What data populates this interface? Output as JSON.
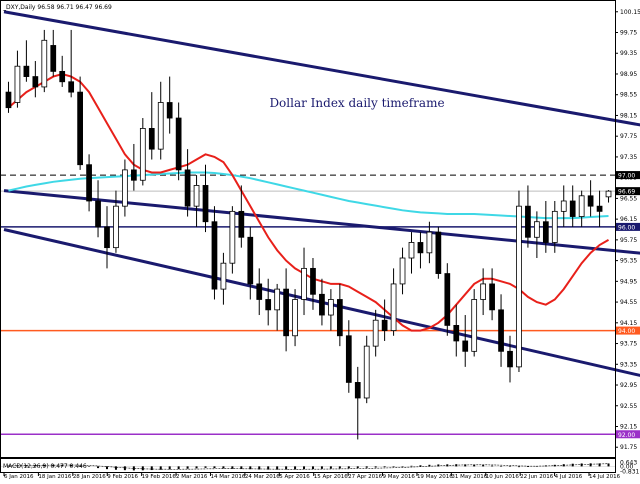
{
  "header": {
    "symbol_line": "_DXY,Daily  96.58 96.71 96.47 96.69"
  },
  "chart_data": [
    {
      "type": "candlestick",
      "title": "Dollar Index daily timeframe",
      "y_ticks": [
        "100.15",
        "99.75",
        "99.35",
        "98.95",
        "98.55",
        "98.15",
        "97.75",
        "97.35",
        "96.95",
        "96.55",
        "96.15",
        "95.75",
        "95.35",
        "94.95",
        "94.55",
        "94.15",
        "93.75",
        "93.35",
        "92.95",
        "92.55",
        "92.15",
        "91.75"
      ],
      "ylim": [
        91.6,
        100.3
      ],
      "x_ticks": [
        "6 Jan 2016",
        "18 Jan 2016",
        "28 Jan 2016",
        "9 Feb 2016",
        "19 Feb 2016",
        "2 Mar 2016",
        "14 Mar 2016",
        "24 Mar 2016",
        "5 Apr 2016",
        "15 Apr 2016",
        "27 Apr 2016",
        "9 May 2016",
        "19 May 2016",
        "31 May 2016",
        "10 Jun 2016",
        "22 Jun 2016",
        "4 Jul 2016",
        "14 Jul 2016"
      ],
      "price_markers": [
        {
          "label": "97.00",
          "value": 97.0,
          "color": "#000000",
          "style": "dashed"
        },
        {
          "label": "96.69",
          "value": 96.69,
          "color": "#000000",
          "style": "current"
        },
        {
          "label": "96.00",
          "value": 96.0,
          "color": "#1a1a6e",
          "style": "solid"
        },
        {
          "label": "94.00",
          "value": 94.0,
          "color": "#ff5a1f",
          "style": "solid"
        },
        {
          "label": "92.00",
          "value": 92.0,
          "color": "#9b30c8",
          "style": "solid"
        }
      ],
      "trend_channel": [
        {
          "from": [
            0,
            100.15
          ],
          "to": [
            102,
            97.0
          ]
        },
        {
          "from": [
            0,
            96.7
          ],
          "to": [
            135,
            94.4
          ]
        },
        {
          "from": [
            0,
            95.95
          ],
          "to": [
            108,
            91.65
          ]
        }
      ],
      "ma_fast": {
        "color": "#e8201a",
        "values": [
          98.3,
          98.45,
          98.6,
          98.7,
          98.8,
          98.9,
          98.95,
          98.9,
          98.8,
          98.6,
          98.3,
          98.0,
          97.7,
          97.4,
          97.2,
          97.1,
          97.05,
          97.05,
          97.1,
          97.15,
          97.2,
          97.3,
          97.4,
          97.35,
          97.25,
          97.0,
          96.7,
          96.4,
          96.1,
          95.8,
          95.55,
          95.35,
          95.2,
          95.1,
          95.0,
          94.95,
          94.9,
          94.9,
          94.85,
          94.75,
          94.65,
          94.55,
          94.4,
          94.25,
          94.1,
          94.0,
          94.0,
          94.05,
          94.15,
          94.3,
          94.5,
          94.7,
          94.9,
          95.0,
          95.0,
          94.95,
          94.9,
          94.8,
          94.65,
          94.55,
          94.5,
          94.6,
          94.8,
          95.05,
          95.3,
          95.5,
          95.65,
          95.75
        ]
      },
      "ma_slow": {
        "color": "#3fd8e6",
        "values": [
          96.7,
          96.74,
          96.78,
          96.81,
          96.84,
          96.87,
          96.89,
          96.91,
          96.93,
          96.94,
          96.95,
          96.96,
          96.97,
          96.98,
          96.99,
          97.0,
          97.01,
          97.02,
          97.03,
          97.04,
          97.05,
          97.05,
          97.05,
          97.04,
          97.02,
          97.0,
          96.97,
          96.94,
          96.9,
          96.86,
          96.82,
          96.78,
          96.74,
          96.7,
          96.66,
          96.62,
          96.58,
          96.54,
          96.5,
          96.47,
          96.44,
          96.41,
          96.38,
          96.35,
          96.32,
          96.3,
          96.28,
          96.27,
          96.26,
          96.25,
          96.25,
          96.25,
          96.25,
          96.24,
          96.23,
          96.22,
          96.21,
          96.2,
          96.19,
          96.18,
          96.17,
          96.17,
          96.17,
          96.17,
          96.18,
          96.19,
          96.2,
          96.21
        ]
      },
      "ohlc": [
        [
          98.6,
          98.8,
          98.2,
          98.3
        ],
        [
          98.4,
          99.4,
          98.3,
          99.1
        ],
        [
          99.1,
          99.6,
          98.8,
          98.9
        ],
        [
          98.9,
          99.2,
          98.5,
          98.7
        ],
        [
          98.7,
          99.8,
          98.6,
          99.6
        ],
        [
          99.5,
          99.8,
          98.9,
          99.0
        ],
        [
          99.0,
          99.3,
          98.7,
          98.8
        ],
        [
          98.8,
          99.8,
          98.5,
          98.6
        ],
        [
          98.6,
          98.9,
          97.1,
          97.2
        ],
        [
          97.2,
          97.4,
          96.3,
          96.5
        ],
        [
          96.5,
          96.9,
          95.8,
          96.0
        ],
        [
          96.0,
          96.4,
          95.2,
          95.6
        ],
        [
          95.6,
          96.7,
          95.5,
          96.4
        ],
        [
          96.4,
          97.3,
          96.2,
          97.1
        ],
        [
          97.1,
          97.6,
          96.7,
          96.9
        ],
        [
          96.9,
          98.1,
          96.8,
          97.9
        ],
        [
          97.9,
          98.6,
          97.3,
          97.5
        ],
        [
          97.5,
          98.8,
          97.3,
          98.4
        ],
        [
          98.4,
          98.9,
          97.8,
          98.1
        ],
        [
          98.1,
          98.4,
          96.9,
          97.1
        ],
        [
          97.1,
          97.5,
          96.2,
          96.4
        ],
        [
          96.4,
          97.0,
          96.0,
          96.8
        ],
        [
          96.8,
          97.2,
          95.9,
          96.1
        ],
        [
          96.1,
          96.4,
          94.6,
          94.8
        ],
        [
          94.8,
          95.5,
          94.5,
          95.3
        ],
        [
          95.3,
          96.4,
          95.1,
          96.3
        ],
        [
          96.3,
          96.8,
          95.6,
          95.8
        ],
        [
          95.8,
          96.0,
          94.6,
          94.9
        ],
        [
          94.9,
          95.2,
          94.3,
          94.6
        ],
        [
          94.6,
          95.0,
          94.1,
          94.4
        ],
        [
          94.4,
          94.9,
          94.0,
          94.8
        ],
        [
          94.8,
          95.2,
          93.6,
          93.9
        ],
        [
          93.9,
          94.8,
          93.7,
          94.6
        ],
        [
          94.6,
          95.6,
          94.3,
          95.2
        ],
        [
          95.2,
          95.4,
          94.4,
          94.7
        ],
        [
          94.7,
          95.0,
          94.1,
          94.3
        ],
        [
          94.3,
          94.8,
          94.0,
          94.6
        ],
        [
          94.6,
          94.9,
          93.7,
          93.9
        ],
        [
          93.9,
          94.2,
          92.8,
          93.0
        ],
        [
          93.0,
          93.3,
          91.9,
          92.7
        ],
        [
          92.7,
          93.9,
          92.6,
          93.7
        ],
        [
          93.7,
          94.4,
          93.5,
          94.2
        ],
        [
          94.2,
          94.6,
          93.8,
          94.0
        ],
        [
          94.0,
          95.2,
          93.9,
          94.9
        ],
        [
          94.9,
          95.6,
          94.7,
          95.4
        ],
        [
          95.4,
          95.9,
          95.1,
          95.7
        ],
        [
          95.7,
          95.9,
          95.2,
          95.5
        ],
        [
          95.5,
          96.1,
          95.3,
          95.9
        ],
        [
          95.9,
          96.0,
          95.0,
          95.1
        ],
        [
          95.1,
          95.3,
          93.9,
          94.1
        ],
        [
          94.1,
          94.5,
          93.5,
          93.8
        ],
        [
          93.8,
          94.3,
          93.3,
          93.6
        ],
        [
          93.6,
          94.8,
          93.5,
          94.6
        ],
        [
          94.6,
          95.2,
          94.3,
          94.9
        ],
        [
          94.9,
          95.2,
          94.2,
          94.4
        ],
        [
          94.4,
          94.7,
          93.3,
          93.6
        ],
        [
          93.6,
          93.9,
          93.0,
          93.3
        ],
        [
          93.3,
          96.7,
          93.2,
          96.4
        ],
        [
          96.4,
          96.8,
          95.6,
          95.8
        ],
        [
          95.8,
          96.3,
          95.4,
          96.1
        ],
        [
          96.1,
          96.5,
          95.5,
          95.7
        ],
        [
          95.7,
          96.5,
          95.5,
          96.3
        ],
        [
          96.3,
          96.8,
          96.0,
          96.5
        ],
        [
          96.5,
          96.8,
          96.0,
          96.2
        ],
        [
          96.2,
          96.7,
          96.0,
          96.6
        ],
        [
          96.6,
          96.9,
          96.2,
          96.4
        ],
        [
          96.4,
          96.7,
          96.0,
          96.3
        ],
        [
          96.58,
          96.71,
          96.47,
          96.69
        ]
      ]
    },
    {
      "type": "bar",
      "title": "MACD(12,26,9) 0.477 0.446",
      "y_ticks": [
        "0.643",
        "0.00",
        "-0.831"
      ],
      "ylim": [
        -0.92,
        0.72
      ],
      "values": [
        0.12,
        0.16,
        0.2,
        0.22,
        0.25,
        0.27,
        0.26,
        0.25,
        0.1,
        -0.08,
        -0.28,
        -0.45,
        -0.55,
        -0.62,
        -0.66,
        -0.64,
        -0.6,
        -0.55,
        -0.5,
        -0.44,
        -0.38,
        -0.32,
        -0.24,
        -0.28,
        -0.32,
        -0.38,
        -0.42,
        -0.46,
        -0.5,
        -0.52,
        -0.53,
        -0.52,
        -0.5,
        -0.46,
        -0.43,
        -0.4,
        -0.37,
        -0.33,
        -0.3,
        -0.26,
        -0.22,
        -0.18,
        -0.12,
        -0.06,
        0.02,
        0.1,
        0.18,
        0.26,
        0.32,
        0.34,
        0.36,
        0.33,
        0.28,
        0.22,
        0.12,
        0.02,
        -0.06,
        -0.12,
        -0.1,
        0.04,
        0.16,
        0.26,
        0.36,
        0.44,
        0.48,
        0.5,
        0.49,
        0.477
      ],
      "signal": [
        0.1,
        0.12,
        0.14,
        0.16,
        0.18,
        0.2,
        0.21,
        0.22,
        0.2,
        0.15,
        0.07,
        -0.03,
        -0.14,
        -0.24,
        -0.33,
        -0.4,
        -0.44,
        -0.46,
        -0.47,
        -0.47,
        -0.46,
        -0.44,
        -0.41,
        -0.39,
        -0.38,
        -0.38,
        -0.39,
        -0.4,
        -0.42,
        -0.44,
        -0.46,
        -0.47,
        -0.48,
        -0.47,
        -0.46,
        -0.45,
        -0.43,
        -0.41,
        -0.39,
        -0.36,
        -0.33,
        -0.3,
        -0.26,
        -0.22,
        -0.17,
        -0.11,
        -0.05,
        0.02,
        0.09,
        0.15,
        0.21,
        0.24,
        0.26,
        0.26,
        0.24,
        0.2,
        0.14,
        0.08,
        0.04,
        0.04,
        0.07,
        0.12,
        0.18,
        0.24,
        0.3,
        0.36,
        0.4,
        0.446
      ]
    }
  ]
}
